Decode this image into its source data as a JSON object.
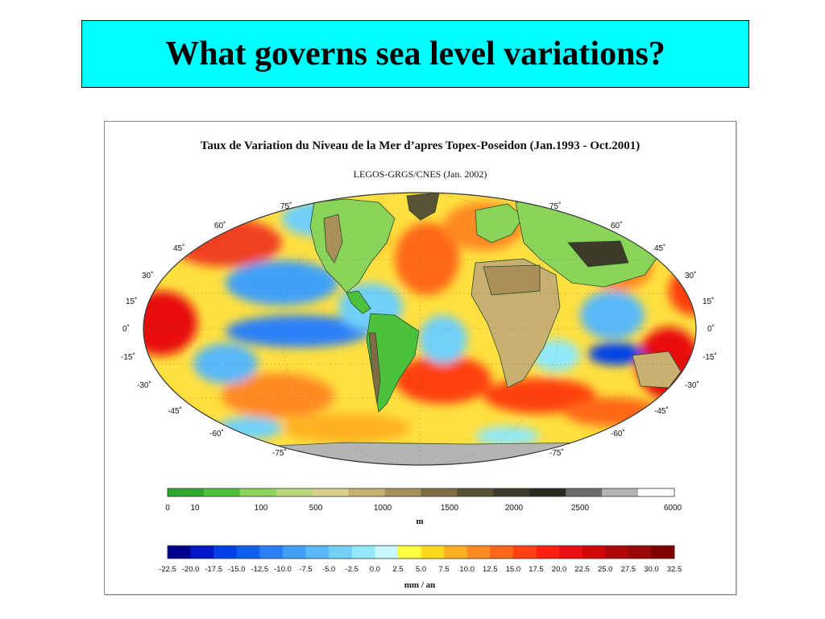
{
  "slide": {
    "title": "What governs sea level variations?",
    "title_bg_color": "#00ffff"
  },
  "figure": {
    "title": "Taux de Variation du Niveau de la Mer d’apres Topex-Poseidon (Jan.1993 - Oct.2001)",
    "subtitle": "LEGOS-GRGS/CNES  (Jan. 2002)",
    "lat_labels_left": [
      "75˚",
      "60˚",
      "45˚",
      "30˚",
      "15˚",
      "0˚",
      "-15˚",
      "-30˚",
      "-45˚",
      "-60˚",
      "-75˚"
    ],
    "lat_labels_right": [
      "75˚",
      "60˚",
      "45˚",
      "30˚",
      "15˚",
      "0˚",
      "-15˚",
      "-30˚",
      "-45˚",
      "-60˚",
      "-75˚"
    ],
    "elevation_bar": {
      "ticks": [
        "0",
        "10",
        "100",
        "500",
        "1000",
        "1500",
        "2000",
        "2500",
        "6000"
      ],
      "unit": "m",
      "colors": [
        "#2aa82a",
        "#4cc23c",
        "#8bd45a",
        "#b8d878",
        "#d8d08a",
        "#c8b070",
        "#a89058",
        "#806c44",
        "#5a5234",
        "#3c3a28",
        "#2a2a22",
        "#6a6a6a",
        "#b4b4b4",
        "#ffffff"
      ]
    },
    "rate_bar": {
      "ticks": [
        "-22.5",
        "-20.0",
        "-17.5",
        "-15.0",
        "-12.5",
        "-10.0",
        "-7.5",
        "-5.0",
        "-2.5",
        "0.0",
        "2.5",
        "5.0",
        "7.5",
        "10.0",
        "12.5",
        "15.0",
        "17.5",
        "20.0",
        "22.5",
        "25.0",
        "27.5",
        "30.0",
        "32.5"
      ],
      "unit": "mm / an",
      "colors": [
        "#000090",
        "#0018c8",
        "#0040e8",
        "#1060f0",
        "#2a80f8",
        "#40a0f8",
        "#58b8f8",
        "#70d0f8",
        "#90e8f8",
        "#c8f8ff",
        "#ffff40",
        "#ffd820",
        "#ffb020",
        "#ff8a20",
        "#ff6818",
        "#ff4010",
        "#f82010",
        "#e81010",
        "#d00808",
        "#b00808",
        "#980808",
        "#800000"
      ]
    }
  }
}
